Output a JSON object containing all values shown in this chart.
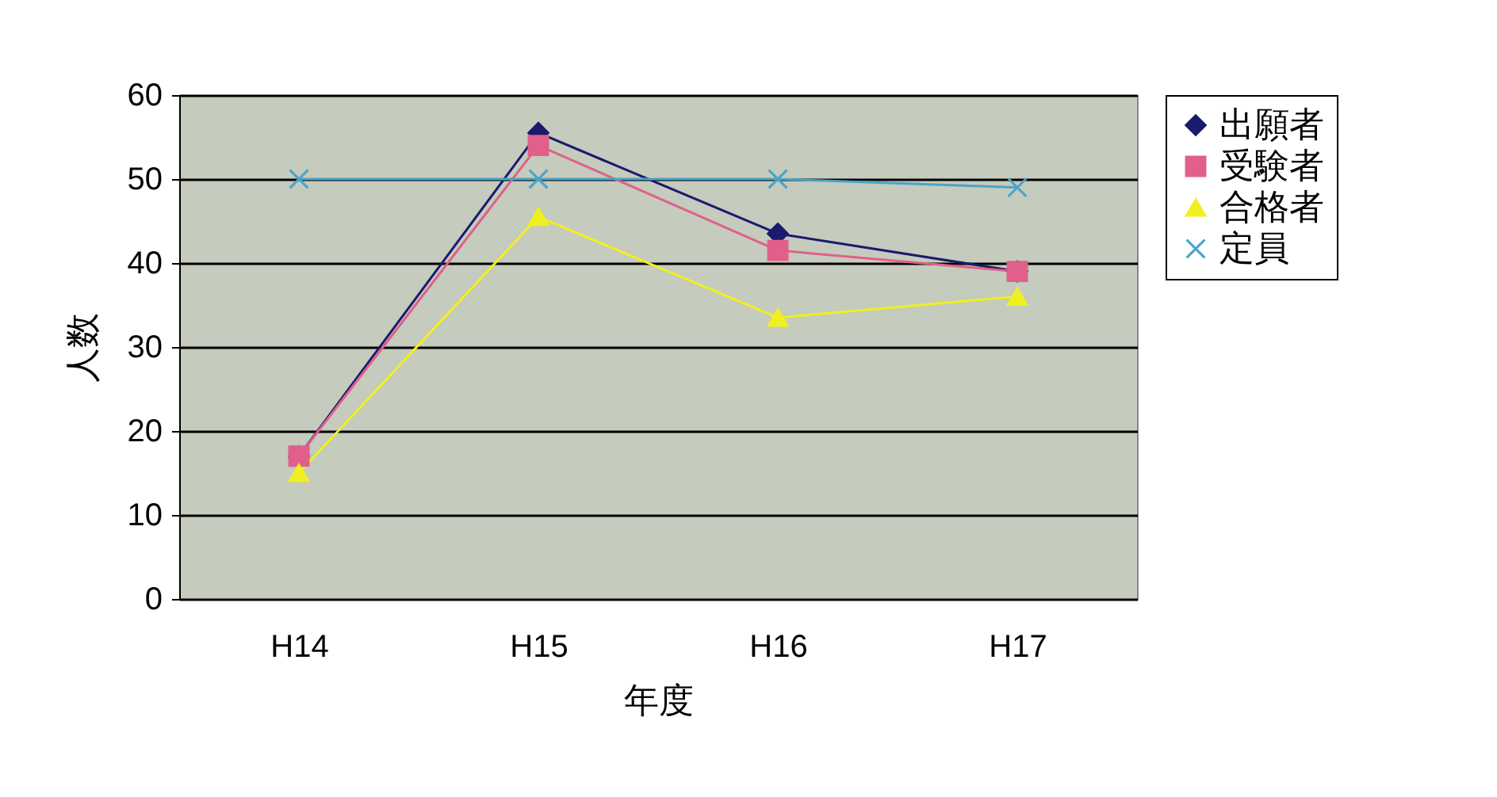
{
  "chart_data": {
    "type": "line",
    "xlabel": "年度",
    "ylabel": "人数",
    "categories": [
      "H14",
      "H15",
      "H16",
      "H17"
    ],
    "series": [
      {
        "name": "出願者",
        "color": "#1a1a6e",
        "marker": "diamond",
        "values": [
          17,
          55.5,
          43.5,
          39
        ]
      },
      {
        "name": "受験者",
        "color": "#e0608a",
        "marker": "square",
        "values": [
          17,
          54,
          41.5,
          39
        ]
      },
      {
        "name": "合格者",
        "color": "#f0f020",
        "marker": "triangle",
        "values": [
          15,
          45.5,
          33.5,
          36
        ]
      },
      {
        "name": "定員",
        "color": "#4ba3c8",
        "marker": "cross",
        "values": [
          50,
          50,
          50,
          49
        ]
      }
    ],
    "ylim": [
      0,
      60
    ],
    "yticks": [
      0,
      10,
      20,
      30,
      40,
      50,
      60
    ],
    "grid": "y",
    "legend": "right",
    "line_style": "solid"
  }
}
